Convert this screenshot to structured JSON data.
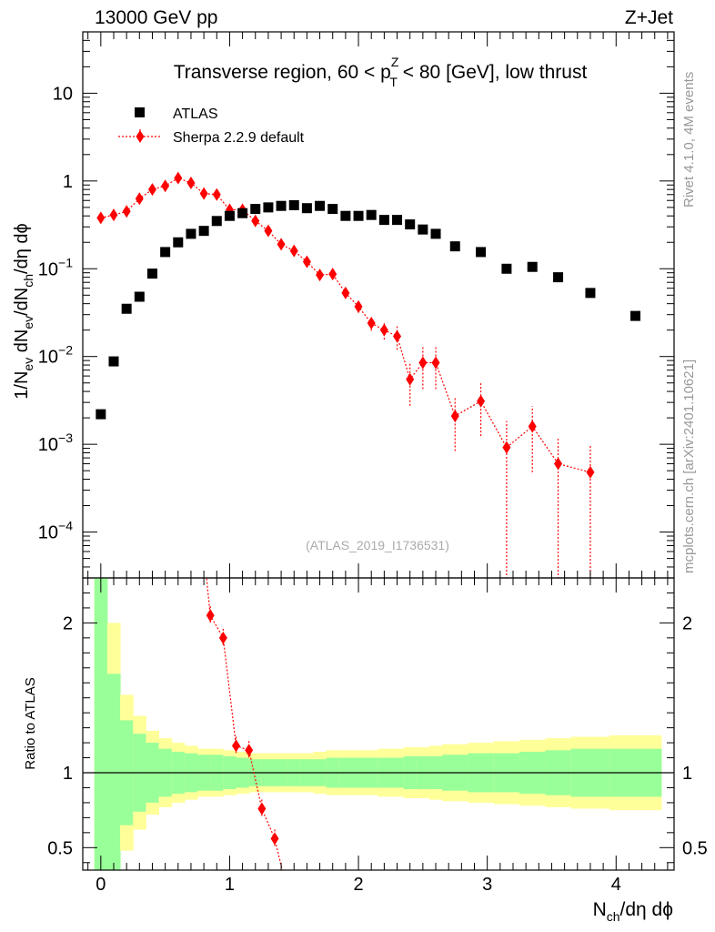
{
  "header": {
    "left": "13000 GeV pp",
    "right": "Z+Jet"
  },
  "side_labels": {
    "rivet": "Rivet 4.1.0,  4M events",
    "mcplots": "mcplots.cern.ch [arXiv:2401.10621]"
  },
  "colors": {
    "atlas": "#000000",
    "sherpa": "#ff0000",
    "band_inner": "#99ff99",
    "band_outer": "#ffff99"
  },
  "chart_data": [
    {
      "type": "scatter",
      "title": "Transverse region, 60 < p_T^Z < 80 [GeV], low thrust",
      "title_parts": {
        "pre": "Transverse region, 60 < p",
        "sup": "Z",
        "sub": "T",
        "post": " < 80 [GeV], low thrust"
      },
      "ylabel": "1/N_ev dN_ev/dN_ch/dη dϕ",
      "ylabel_parts": {
        "a": "1/N",
        "a_sub": "ev",
        "b": " dN",
        "b_sub": "ev",
        "c": "/dN",
        "c_sub": "ch",
        "d": "/dη dϕ"
      },
      "yscale": "log",
      "ylim": [
        3e-05,
        50
      ],
      "xlim": [
        -0.14,
        4.45
      ],
      "ytick_labels": [
        {
          "value": 10,
          "base": "10",
          "exp": ""
        },
        {
          "value": 1,
          "base": "1",
          "exp": ""
        },
        {
          "value": 0.1,
          "base": "10",
          "exp": "−1"
        },
        {
          "value": 0.01,
          "base": "10",
          "exp": "−2"
        },
        {
          "value": 0.001,
          "base": "10",
          "exp": "−3"
        },
        {
          "value": 0.0001,
          "base": "10",
          "exp": "−4"
        }
      ],
      "watermark": "(ATLAS_2019_I1736531)",
      "legend_position": "top-left",
      "series": [
        {
          "name": "ATLAS",
          "marker": "square",
          "x": [
            0.0,
            0.1,
            0.2,
            0.3,
            0.4,
            0.5,
            0.6,
            0.7,
            0.8,
            0.9,
            1.0,
            1.1,
            1.2,
            1.3,
            1.4,
            1.5,
            1.6,
            1.7,
            1.8,
            1.9,
            2.0,
            2.1,
            2.2,
            2.3,
            2.4,
            2.5,
            2.6,
            2.75,
            2.95,
            3.15,
            3.35,
            3.55,
            3.8,
            4.15
          ],
          "y": [
            0.0022,
            0.0088,
            0.035,
            0.048,
            0.088,
            0.155,
            0.2,
            0.25,
            0.27,
            0.35,
            0.4,
            0.43,
            0.48,
            0.5,
            0.52,
            0.53,
            0.49,
            0.52,
            0.48,
            0.4,
            0.4,
            0.41,
            0.36,
            0.36,
            0.32,
            0.28,
            0.25,
            0.18,
            0.155,
            0.1,
            0.105,
            0.08,
            0.053,
            0.029
          ]
        },
        {
          "name": "Sherpa 2.2.9 default",
          "marker": "diamond",
          "x": [
            0.0,
            0.1,
            0.2,
            0.3,
            0.4,
            0.5,
            0.6,
            0.7,
            0.8,
            0.9,
            1.0,
            1.1,
            1.2,
            1.3,
            1.4,
            1.5,
            1.6,
            1.7,
            1.8,
            1.9,
            2.0,
            2.1,
            2.2,
            2.3,
            2.4,
            2.5,
            2.6,
            2.75,
            2.95,
            3.15,
            3.35,
            3.55,
            3.8
          ],
          "y": [
            0.38,
            0.41,
            0.45,
            0.63,
            0.8,
            0.88,
            1.08,
            0.95,
            0.72,
            0.7,
            0.47,
            0.47,
            0.35,
            0.27,
            0.19,
            0.16,
            0.12,
            0.085,
            0.087,
            0.053,
            0.037,
            0.024,
            0.02,
            0.017,
            0.0055,
            0.0085,
            0.0085,
            0.0021,
            0.0031,
            0.00092,
            0.0016,
            0.0006,
            0.00048
          ],
          "yerr_rel": [
            0.03,
            0.03,
            0.03,
            0.03,
            0.03,
            0.03,
            0.03,
            0.03,
            0.03,
            0.03,
            0.04,
            0.04,
            0.05,
            0.05,
            0.06,
            0.07,
            0.08,
            0.1,
            0.1,
            0.12,
            0.15,
            0.18,
            0.22,
            0.3,
            0.5,
            0.5,
            0.5,
            0.6,
            0.6,
            1.0,
            0.7,
            1.0,
            1.0
          ]
        }
      ]
    },
    {
      "type": "scatter",
      "title": "",
      "ylabel": "Ratio to ATLAS",
      "xlabel": "N_ch/dη dϕ",
      "xlabel_parts": {
        "a": "N",
        "a_sub": "ch",
        "b": "/dη dϕ"
      },
      "ylim": [
        0.35,
        2.3
      ],
      "xlim": [
        -0.14,
        4.45
      ],
      "yticks": [
        0.5,
        1,
        2
      ],
      "ytick_labels": [
        "0.5",
        "1",
        "2"
      ],
      "xticks": [
        0,
        1,
        2,
        3,
        4
      ],
      "xtick_labels": [
        "0",
        "1",
        "2",
        "3",
        "4"
      ],
      "reference_line": 1,
      "band_edges": [
        -0.05,
        0.05,
        0.15,
        0.25,
        0.35,
        0.45,
        0.55,
        0.65,
        0.75,
        0.85,
        0.95,
        1.05,
        1.15,
        1.25,
        1.35,
        1.45,
        1.55,
        1.65,
        1.75,
        1.85,
        1.95,
        2.05,
        2.15,
        2.25,
        2.35,
        2.45,
        2.55,
        2.65,
        2.85,
        3.05,
        3.25,
        3.45,
        3.65,
        3.95,
        4.35
      ],
      "band_inner": [
        1.7,
        0.66,
        0.35,
        0.26,
        0.2,
        0.16,
        0.14,
        0.13,
        0.12,
        0.12,
        0.11,
        0.1,
        0.09,
        0.09,
        0.09,
        0.09,
        0.09,
        0.09,
        0.1,
        0.1,
        0.1,
        0.1,
        0.1,
        0.1,
        0.11,
        0.11,
        0.11,
        0.12,
        0.13,
        0.13,
        0.14,
        0.15,
        0.16,
        0.16
      ],
      "band_outer": [
        1.7,
        1.0,
        0.52,
        0.38,
        0.28,
        0.23,
        0.2,
        0.18,
        0.16,
        0.16,
        0.15,
        0.14,
        0.13,
        0.13,
        0.13,
        0.13,
        0.13,
        0.14,
        0.15,
        0.15,
        0.15,
        0.15,
        0.16,
        0.16,
        0.17,
        0.17,
        0.18,
        0.19,
        0.2,
        0.21,
        0.22,
        0.23,
        0.24,
        0.25
      ],
      "series": [
        {
          "name": "Sherpa 2.2.9 default",
          "x": [
            0.85,
            0.95,
            1.05,
            1.15,
            1.25,
            1.35
          ],
          "y": [
            2.05,
            1.9,
            1.18,
            1.15,
            0.76,
            0.56
          ]
        }
      ]
    }
  ]
}
